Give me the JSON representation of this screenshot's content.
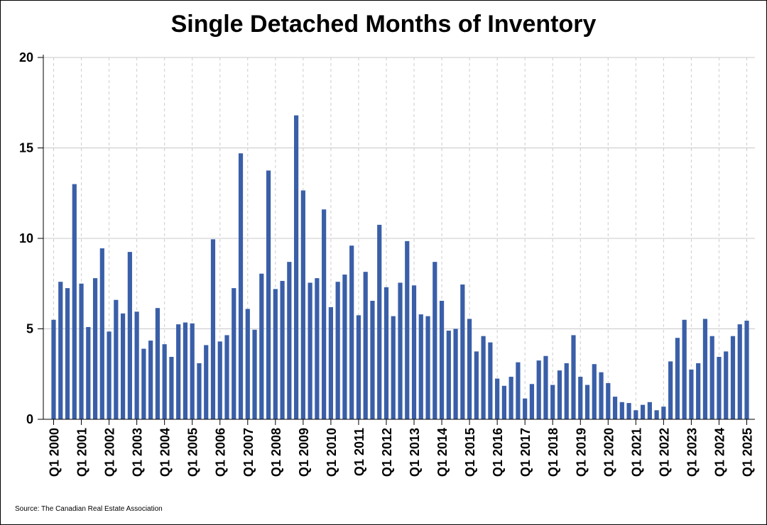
{
  "chart_data": {
    "type": "bar",
    "title": "Single Detached Months of Inventory",
    "source": "Source: The Canadian Real Estate Association",
    "xlabel": "",
    "ylabel": "",
    "ylim": [
      0,
      20
    ],
    "y_ticks": [
      0,
      5,
      10,
      15,
      20
    ],
    "grid": true,
    "bar_color": "#3a5fa8",
    "x_tick_labels": [
      "Q1 2000",
      "Q1 2001",
      "Q1 2002",
      "Q1 2003",
      "Q1 2004",
      "Q1 2005",
      "Q1 2006",
      "Q1 2007",
      "Q1 2008",
      "Q1 2009",
      "Q1 2010",
      "Q1 2011",
      "Q1 2012",
      "Q1 2013",
      "Q1 2014",
      "Q1 2015",
      "Q1 2016",
      "Q1 2017",
      "Q1 2018",
      "Q1 2019",
      "Q1 2020",
      "Q1 2021",
      "Q1 2022",
      "Q1 2023",
      "Q1 2024",
      "Q1 2025"
    ],
    "categories": [
      "Q1 2000",
      "Q2 2000",
      "Q3 2000",
      "Q4 2000",
      "Q1 2001",
      "Q2 2001",
      "Q3 2001",
      "Q4 2001",
      "Q1 2002",
      "Q2 2002",
      "Q3 2002",
      "Q4 2002",
      "Q1 2003",
      "Q2 2003",
      "Q3 2003",
      "Q4 2003",
      "Q1 2004",
      "Q2 2004",
      "Q3 2004",
      "Q4 2004",
      "Q1 2005",
      "Q2 2005",
      "Q3 2005",
      "Q4 2005",
      "Q1 2006",
      "Q2 2006",
      "Q3 2006",
      "Q4 2006",
      "Q1 2007",
      "Q2 2007",
      "Q3 2007",
      "Q4 2007",
      "Q1 2008",
      "Q2 2008",
      "Q3 2008",
      "Q4 2008",
      "Q1 2009",
      "Q2 2009",
      "Q3 2009",
      "Q4 2009",
      "Q1 2010",
      "Q2 2010",
      "Q3 2010",
      "Q4 2010",
      "Q1 2011",
      "Q2 2011",
      "Q3 2011",
      "Q4 2011",
      "Q1 2012",
      "Q2 2012",
      "Q3 2012",
      "Q4 2012",
      "Q1 2013",
      "Q2 2013",
      "Q3 2013",
      "Q4 2013",
      "Q1 2014",
      "Q2 2014",
      "Q3 2014",
      "Q4 2014",
      "Q1 2015",
      "Q2 2015",
      "Q3 2015",
      "Q4 2015",
      "Q1 2016",
      "Q2 2016",
      "Q3 2016",
      "Q4 2016",
      "Q1 2017",
      "Q2 2017",
      "Q3 2017",
      "Q4 2017",
      "Q1 2018",
      "Q2 2018",
      "Q3 2018",
      "Q4 2018",
      "Q1 2019",
      "Q2 2019",
      "Q3 2019",
      "Q4 2019",
      "Q1 2020",
      "Q2 2020",
      "Q3 2020",
      "Q4 2020",
      "Q1 2021",
      "Q2 2021",
      "Q3 2021",
      "Q4 2021",
      "Q1 2022",
      "Q2 2022",
      "Q3 2022",
      "Q4 2022",
      "Q1 2023",
      "Q2 2023",
      "Q3 2023",
      "Q4 2023",
      "Q1 2024",
      "Q2 2024",
      "Q3 2024",
      "Q4 2024",
      "Q1 2025"
    ],
    "values": [
      5.5,
      7.6,
      7.25,
      13.0,
      7.5,
      5.1,
      7.8,
      9.45,
      4.85,
      6.6,
      5.85,
      9.25,
      5.95,
      3.9,
      4.35,
      6.15,
      4.15,
      3.45,
      5.25,
      5.35,
      5.3,
      3.1,
      4.1,
      9.95,
      4.3,
      4.65,
      7.25,
      14.7,
      6.1,
      4.95,
      8.05,
      13.75,
      7.2,
      7.65,
      8.7,
      16.8,
      12.65,
      7.55,
      7.8,
      11.6,
      6.2,
      7.6,
      8.0,
      9.6,
      5.75,
      8.15,
      6.55,
      10.75,
      7.3,
      5.7,
      7.55,
      9.85,
      7.4,
      5.8,
      5.7,
      8.7,
      6.55,
      4.9,
      5.0,
      7.45,
      5.55,
      3.75,
      4.6,
      4.25,
      2.25,
      1.85,
      2.35,
      3.15,
      1.15,
      1.95,
      3.25,
      3.5,
      1.9,
      2.7,
      3.1,
      4.65,
      2.35,
      1.9,
      3.05,
      2.6,
      2.0,
      1.25,
      0.95,
      0.9,
      0.5,
      0.8,
      0.95,
      0.5,
      0.7,
      3.2,
      4.5,
      5.5,
      2.75,
      3.1,
      5.55,
      4.6,
      3.45,
      3.75,
      4.6,
      5.25,
      5.45
    ]
  }
}
